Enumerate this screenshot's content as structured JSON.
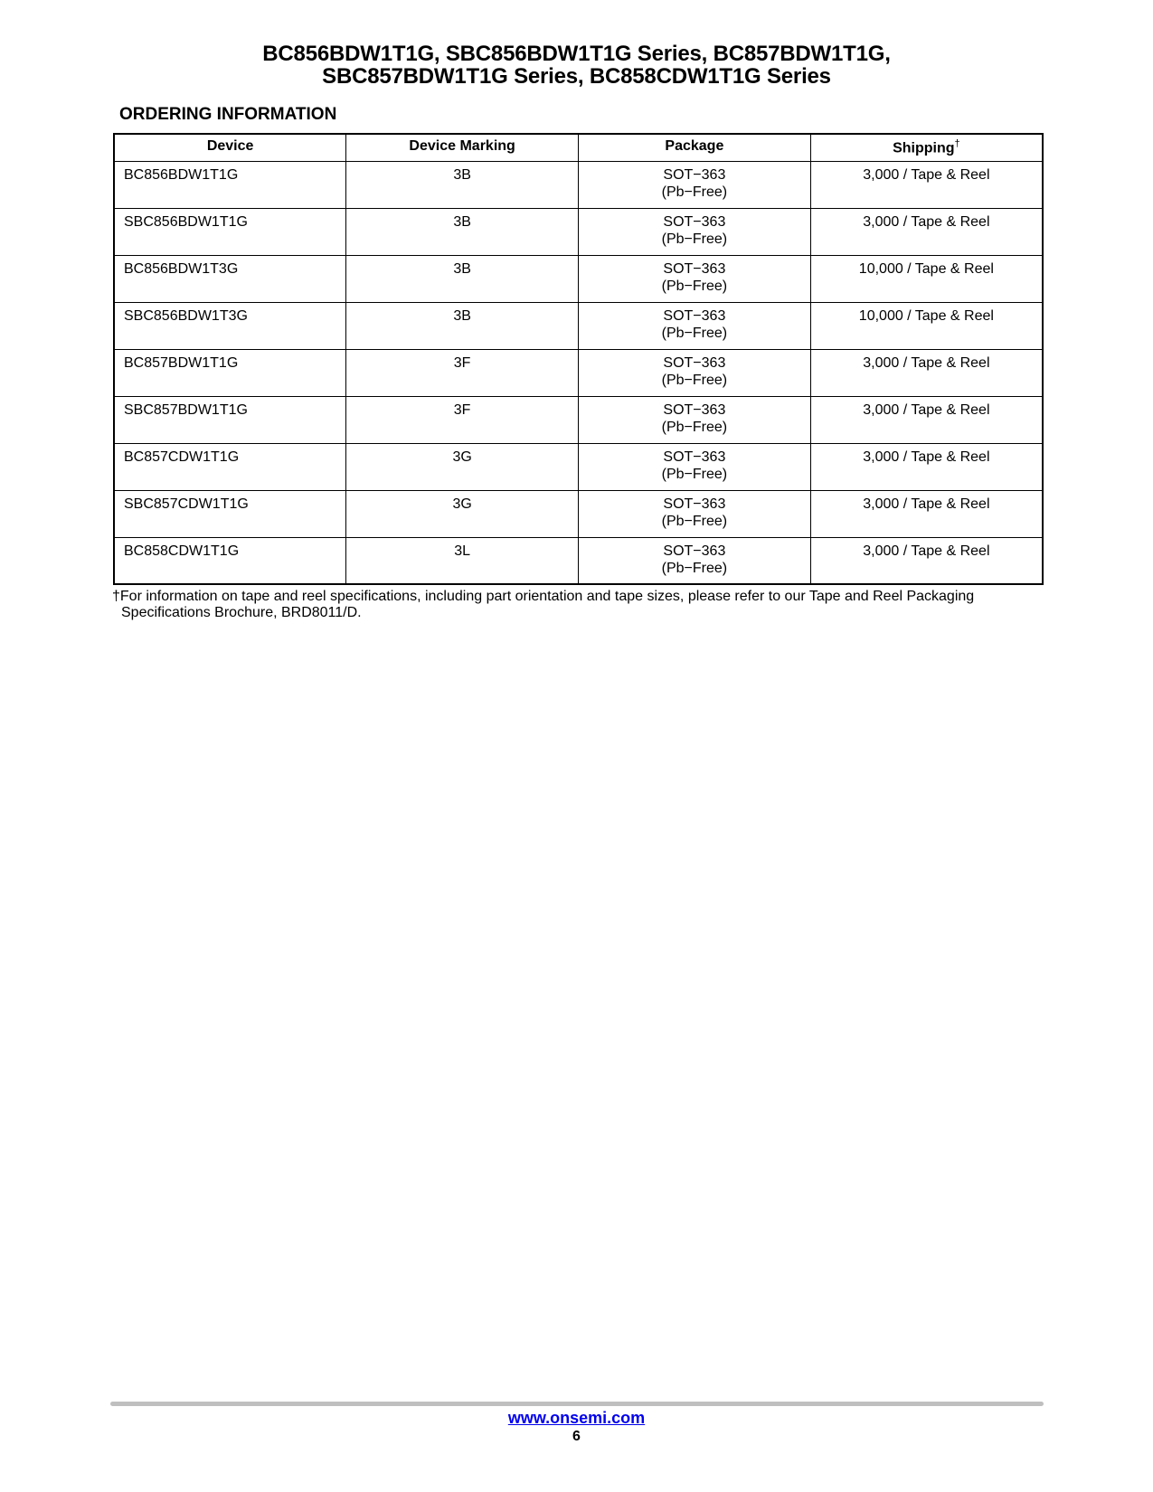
{
  "header": {
    "title_line1": "BC856BDW1T1G, SBC856BDW1T1G Series,  BC857BDW1T1G,",
    "title_line2": "SBC857BDW1T1G Series, BC858CDW1T1G Series"
  },
  "section_title": "ORDERING INFORMATION",
  "table": {
    "headers": [
      "Device",
      "Device Marking",
      "Package",
      "Shipping"
    ],
    "shipping_dagger": "†",
    "rows": [
      {
        "device": "BC856BDW1T1G",
        "marking": "3B",
        "package": "SOT−363",
        "package_note": "(Pb−Free)",
        "shipping": "3,000 / Tape & Reel"
      },
      {
        "device": "SBC856BDW1T1G",
        "marking": "3B",
        "package": "SOT−363",
        "package_note": "(Pb−Free)",
        "shipping": "3,000 / Tape & Reel"
      },
      {
        "device": "BC856BDW1T3G",
        "marking": "3B",
        "package": "SOT−363",
        "package_note": "(Pb−Free)",
        "shipping": "10,000 / Tape & Reel"
      },
      {
        "device": "SBC856BDW1T3G",
        "marking": "3B",
        "package": "SOT−363",
        "package_note": "(Pb−Free)",
        "shipping": "10,000 / Tape & Reel"
      },
      {
        "device": "BC857BDW1T1G",
        "marking": "3F",
        "package": "SOT−363",
        "package_note": "(Pb−Free)",
        "shipping": "3,000 / Tape & Reel"
      },
      {
        "device": "SBC857BDW1T1G",
        "marking": "3F",
        "package": "SOT−363",
        "package_note": "(Pb−Free)",
        "shipping": "3,000 / Tape & Reel"
      },
      {
        "device": "BC857CDW1T1G",
        "marking": "3G",
        "package": "SOT−363",
        "package_note": "(Pb−Free)",
        "shipping": "3,000 / Tape & Reel"
      },
      {
        "device": "SBC857CDW1T1G",
        "marking": "3G",
        "package": "SOT−363",
        "package_note": "(Pb−Free)",
        "shipping": "3,000 / Tape & Reel"
      },
      {
        "device": "BC858CDW1T1G",
        "marking": "3L",
        "package": "SOT−363",
        "package_note": "(Pb−Free)",
        "shipping": "3,000 / Tape & Reel"
      }
    ]
  },
  "footnote": {
    "line1": "†For information on tape and reel specifications, including part orientation and tape sizes, please refer to our Tape and Reel Packaging",
    "line2": "Specifications Brochure, BRD8011/D."
  },
  "footer": {
    "url": "www.onsemi.com",
    "page_number": "6",
    "link_color": "#0000ee",
    "rule_color": "#bfbfbf"
  }
}
